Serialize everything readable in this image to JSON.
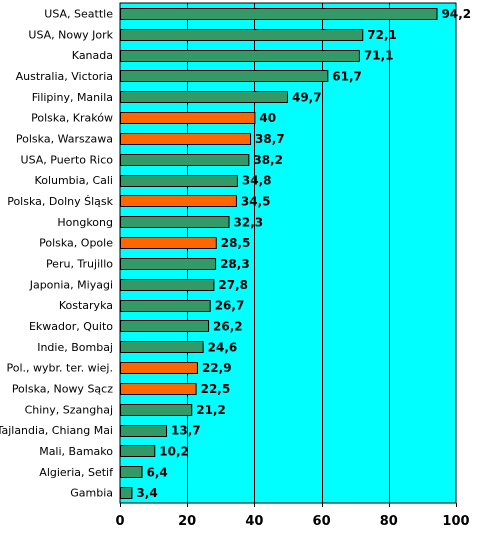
{
  "chart_data": {
    "type": "bar",
    "orientation": "horizontal",
    "categories": [
      "USA, Seattle",
      "USA, Nowy Jork",
      "Kanada",
      "Australia, Victoria",
      "Filipiny, Manila",
      "Polska, Kraków",
      "Polska, Warszawa",
      "USA, Puerto Rico",
      "Kolumbia, Cali",
      "Polska, Dolny Śląsk",
      "Hongkong",
      "Polska, Opole",
      "Peru, Trujillo",
      "Japonia, Miyagi",
      "Kostaryka",
      "Ekwador, Quito",
      "Indie, Bombaj",
      "Pol., wybr. ter. wiej.",
      "Polska, Nowy Sącz",
      "Chiny, Szanghaj",
      "Tajlandia, Chiang Mai",
      "Mali, Bamako",
      "Algieria, Setif",
      "Gambia"
    ],
    "values": [
      94.2,
      72.1,
      71.1,
      61.7,
      49.7,
      40,
      38.7,
      38.2,
      34.8,
      34.5,
      32.3,
      28.5,
      28.3,
      27.8,
      26.7,
      26.2,
      24.6,
      22.9,
      22.5,
      21.2,
      13.7,
      10.2,
      6.4,
      3.4
    ],
    "value_labels": [
      "94,2",
      "72,1",
      "71,1",
      "61,7",
      "49,7",
      "40",
      "38,7",
      "38,2",
      "34,8",
      "34,5",
      "32,3",
      "28,5",
      "28,3",
      "27,8",
      "26,7",
      "26,2",
      "24,6",
      "22,9",
      "22,5",
      "21,2",
      "13,7",
      "10,2",
      "6,4",
      "3,4"
    ],
    "highlighted": [
      false,
      false,
      false,
      false,
      false,
      true,
      true,
      false,
      false,
      true,
      false,
      true,
      false,
      false,
      false,
      false,
      false,
      true,
      true,
      false,
      false,
      false,
      false,
      false
    ],
    "xlim": [
      0,
      100
    ],
    "xticks": [
      0,
      20,
      40,
      60,
      80,
      100
    ],
    "xtick_labels": [
      "0",
      "20",
      "40",
      "60",
      "80",
      "100"
    ],
    "grid": "vertical",
    "title": "",
    "xlabel": "",
    "ylabel": "",
    "colors": {
      "plot_background": "#00ffff",
      "bar_default": "#339966",
      "bar_highlight": "#ff6600",
      "gridline": "#000000",
      "bar_border": "#000000"
    }
  }
}
